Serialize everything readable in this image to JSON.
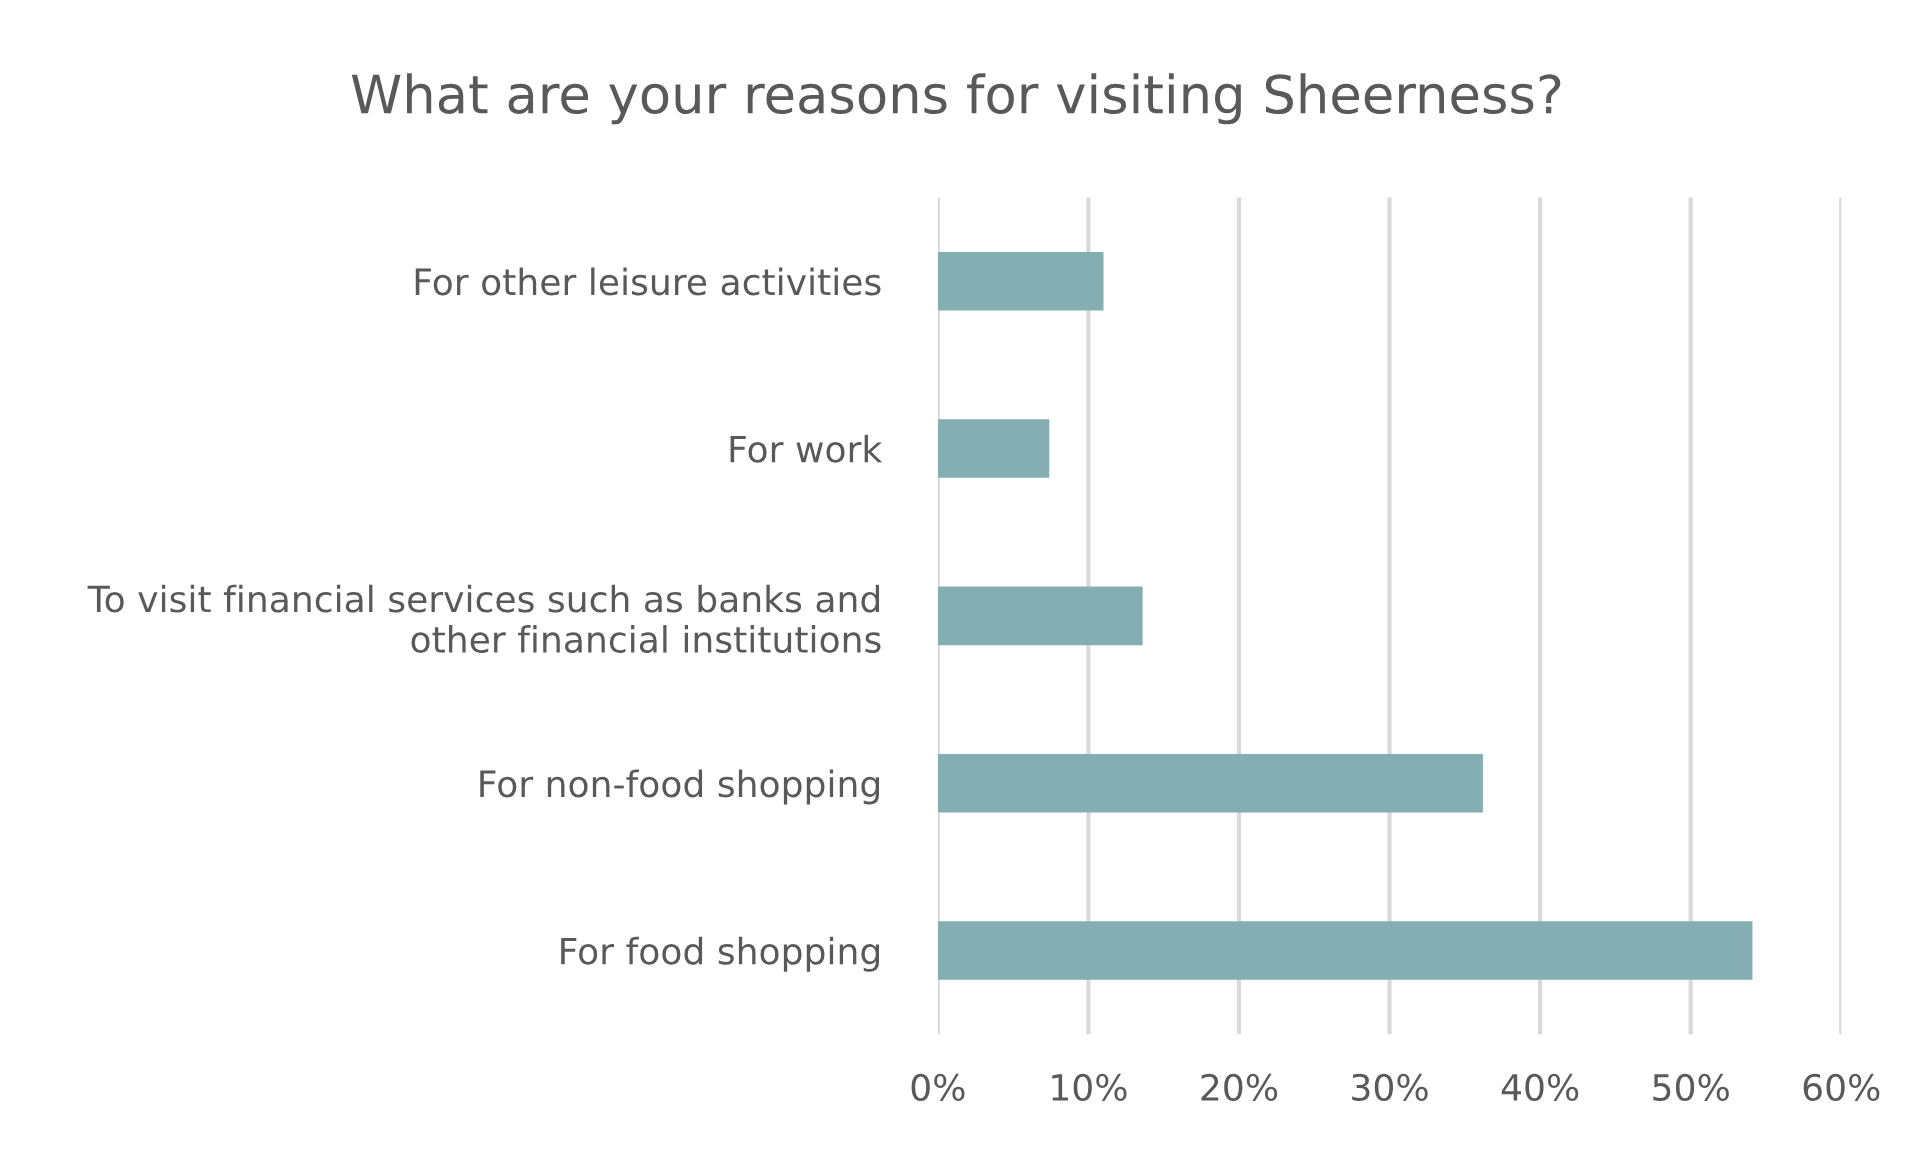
{
  "chart_data": {
    "type": "bar",
    "orientation": "horizontal",
    "title": "What are your reasons for visiting Sheerness?",
    "categories": [
      "For other leisure activities",
      "For work",
      "To visit financial services such as banks and\nother financial institutions",
      "For non-food shopping",
      "For food shopping"
    ],
    "values": [
      11.0,
      7.4,
      13.6,
      36.2,
      54.1
    ],
    "color": "#85aeb3",
    "xlim": [
      0,
      60
    ],
    "xticks": [
      {
        "value": 0,
        "label": "0%"
      },
      {
        "value": 10,
        "label": "10%"
      },
      {
        "value": 20,
        "label": "20%"
      },
      {
        "value": 30,
        "label": "30%"
      },
      {
        "value": 40,
        "label": "40%"
      },
      {
        "value": 50,
        "label": "50%"
      },
      {
        "value": 60,
        "label": "60%"
      }
    ],
    "grid": "x"
  }
}
